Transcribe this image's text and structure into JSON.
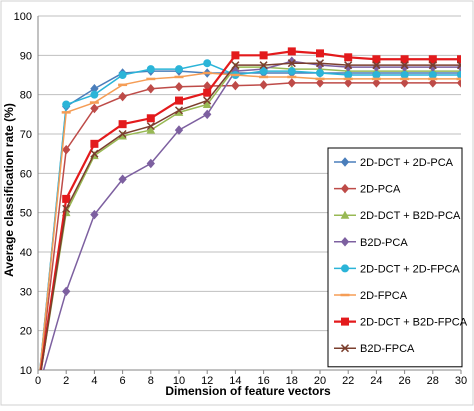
{
  "chart_data": {
    "type": "line",
    "xlabel": "Dimension of feature vectors",
    "ylabel": "Average classification rate (%)",
    "xlim": [
      0,
      30
    ],
    "ylim": [
      10,
      100
    ],
    "x_ticks": [
      0,
      2,
      4,
      6,
      8,
      10,
      12,
      14,
      16,
      18,
      20,
      22,
      24,
      26,
      28,
      30
    ],
    "y_ticks": [
      10,
      20,
      30,
      40,
      50,
      60,
      70,
      80,
      90,
      100
    ],
    "grid": "horizontal",
    "legend_position": "right",
    "x": [
      0,
      2,
      4,
      6,
      8,
      10,
      12,
      14,
      16,
      18,
      20,
      22,
      24,
      26,
      28,
      30
    ],
    "series": [
      {
        "name": "2D-DCT + 2D-PCA",
        "color": "#4a7ebb",
        "marker": "diamond",
        "values": [
          5,
          77,
          81.5,
          85.5,
          86,
          86,
          85.5,
          85.5,
          85.5,
          85.5,
          85.5,
          85.5,
          85.5,
          85.5,
          85.5,
          85.5
        ]
      },
      {
        "name": "2D-PCA",
        "color": "#be4b48",
        "marker": "diamond",
        "values": [
          5,
          66,
          76.5,
          79.5,
          81.5,
          82,
          82.2,
          82.3,
          82.5,
          83,
          83,
          83,
          83,
          83,
          83,
          83
        ]
      },
      {
        "name": "2D-DCT + B2D-PCA",
        "color": "#98b954",
        "marker": "triangle",
        "values": [
          5,
          50,
          64.5,
          69.5,
          71,
          75.5,
          77.5,
          87,
          87,
          86.5,
          86.5,
          86,
          86,
          86,
          86,
          86
        ]
      },
      {
        "name": "B2D-PCA",
        "color": "#7d60a0",
        "marker": "diamond",
        "values": [
          5,
          30,
          49.5,
          58.5,
          62.5,
          71,
          75,
          86,
          86.5,
          88.5,
          87.5,
          87,
          87,
          87,
          87,
          87
        ]
      },
      {
        "name": "2D-DCT + 2D-FPCA",
        "color": "#2bb4d8",
        "marker": "circle",
        "values": [
          5,
          77.5,
          80,
          85,
          86.5,
          86.5,
          88,
          85,
          86,
          86,
          85.5,
          85,
          85,
          85,
          85,
          85
        ]
      },
      {
        "name": "2D-FPCA",
        "color": "#f59d56",
        "marker": "dash",
        "values": [
          5,
          75.5,
          78,
          82.5,
          84,
          84.5,
          85.5,
          85,
          84.5,
          84.5,
          84,
          84,
          84,
          84,
          84,
          84
        ]
      },
      {
        "name": "2D-DCT + B2D-FPCA",
        "color": "#e31a1c",
        "marker": "square",
        "values": [
          5,
          53.5,
          67.5,
          72.5,
          74,
          78.5,
          80.5,
          90,
          90,
          91,
          90.5,
          89.5,
          89,
          89,
          89,
          89
        ]
      },
      {
        "name": "B2D-FPCA",
        "color": "#7b3f2e",
        "marker": "x",
        "values": [
          5,
          51,
          65,
          70,
          72,
          76,
          78.5,
          87.5,
          87.5,
          88,
          88,
          87.5,
          87.5,
          87.5,
          87.5,
          87.5
        ]
      }
    ]
  }
}
